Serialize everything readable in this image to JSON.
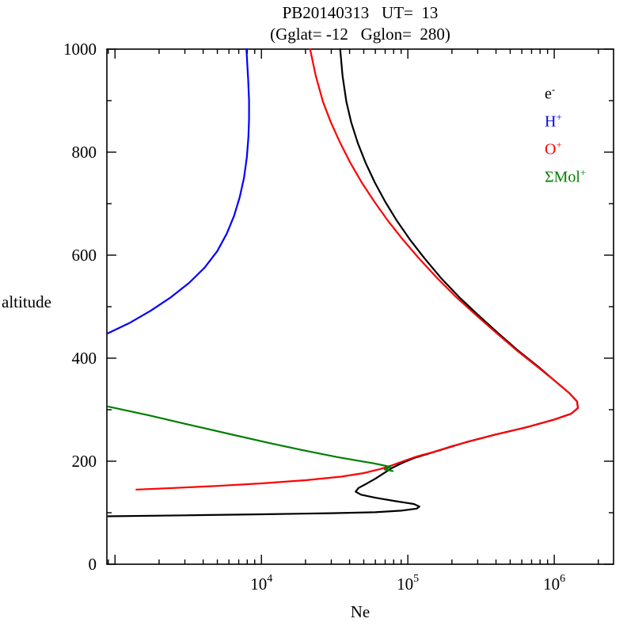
{
  "figure": {
    "title": "PB20140313   UT=  13",
    "subtitle": "(Gglat= -12   Gglon=  280)"
  },
  "chart_data": {
    "type": "line",
    "title": "PB20140313   UT=  13",
    "subtitle": "(Gglat= -12   Gglon=  280)",
    "xlabel": "Ne",
    "ylabel": "altitude",
    "x_scale": "log",
    "grid": false,
    "xlim": [
      880,
      2540000
    ],
    "ylim": [
      0,
      1000
    ],
    "x_major_ticks": [
      10000,
      100000,
      1000000
    ],
    "x_tick_labels": [
      "10^4",
      "10^5",
      "10^6"
    ],
    "y_major_ticks": [
      0,
      200,
      400,
      600,
      800,
      1000
    ],
    "y_minor_step": 100,
    "legend_position": "upper-right-inside",
    "series": [
      {
        "name": "e",
        "label_base": "e",
        "label_sup": "-",
        "color": "#000000",
        "points": [
          [
            900,
            93
          ],
          [
            3000,
            95
          ],
          [
            10000,
            97
          ],
          [
            30000,
            99
          ],
          [
            60000,
            101
          ],
          [
            90000,
            104
          ],
          [
            115000,
            108
          ],
          [
            120000,
            112
          ],
          [
            110000,
            117
          ],
          [
            80000,
            123
          ],
          [
            60000,
            129
          ],
          [
            48000,
            135
          ],
          [
            44000,
            141
          ],
          [
            46000,
            148
          ],
          [
            52000,
            156
          ],
          [
            60000,
            166
          ],
          [
            68000,
            176
          ],
          [
            78000,
            187
          ],
          [
            92000,
            197
          ],
          [
            110000,
            206
          ],
          [
            160000,
            220
          ],
          [
            250000,
            237
          ],
          [
            400000,
            252
          ],
          [
            650000,
            266
          ],
          [
            1000000,
            281
          ],
          [
            1300000,
            292
          ],
          [
            1450000,
            303
          ],
          [
            1430000,
            316
          ],
          [
            1270000,
            332
          ],
          [
            1020000,
            355
          ],
          [
            780000,
            383
          ],
          [
            570000,
            414
          ],
          [
            420000,
            447
          ],
          [
            310000,
            481
          ],
          [
            225000,
            518
          ],
          [
            168000,
            556
          ],
          [
            130000,
            594
          ],
          [
            103000,
            631
          ],
          [
            84000,
            667
          ],
          [
            70000,
            704
          ],
          [
            59500,
            741
          ],
          [
            51500,
            779
          ],
          [
            45500,
            818
          ],
          [
            41000,
            858
          ],
          [
            38000,
            898
          ],
          [
            35800,
            948
          ],
          [
            34500,
            1000
          ]
        ]
      },
      {
        "name": "H",
        "label_base": "H",
        "label_sup": "+",
        "color": "#0000ff",
        "points": [
          [
            890,
            448
          ],
          [
            1250,
            468
          ],
          [
            1750,
            492
          ],
          [
            2400,
            518
          ],
          [
            3200,
            546
          ],
          [
            4100,
            576
          ],
          [
            5000,
            608
          ],
          [
            5800,
            642
          ],
          [
            6500,
            676
          ],
          [
            7100,
            712
          ],
          [
            7600,
            750
          ],
          [
            7950,
            790
          ],
          [
            8150,
            830
          ],
          [
            8230,
            865
          ],
          [
            8230,
            900
          ],
          [
            8120,
            940
          ],
          [
            7900,
            1000
          ]
        ]
      },
      {
        "name": "O",
        "label_base": "O",
        "label_sup": "+",
        "color": "#ff0000",
        "points": [
          [
            1400,
            145
          ],
          [
            2500,
            148
          ],
          [
            5000,
            152
          ],
          [
            10000,
            157
          ],
          [
            20000,
            163
          ],
          [
            35000,
            170
          ],
          [
            50000,
            177
          ],
          [
            65000,
            185
          ],
          [
            78000,
            192
          ],
          [
            93000,
            200
          ],
          [
            115000,
            209
          ],
          [
            150000,
            218
          ],
          [
            200000,
            229
          ],
          [
            250000,
            237
          ],
          [
            400000,
            252
          ],
          [
            650000,
            266
          ],
          [
            1000000,
            281
          ],
          [
            1300000,
            292
          ],
          [
            1450000,
            303
          ],
          [
            1430000,
            316
          ],
          [
            1270000,
            332
          ],
          [
            1020000,
            355
          ],
          [
            770000,
            383
          ],
          [
            560000,
            414
          ],
          [
            410000,
            447
          ],
          [
            300000,
            481
          ],
          [
            215000,
            518
          ],
          [
            158000,
            556
          ],
          [
            119000,
            594
          ],
          [
            92000,
            631
          ],
          [
            73000,
            667
          ],
          [
            59000,
            704
          ],
          [
            48500,
            741
          ],
          [
            40500,
            779
          ],
          [
            34500,
            818
          ],
          [
            29800,
            858
          ],
          [
            26300,
            898
          ],
          [
            23500,
            948
          ],
          [
            21500,
            1000
          ]
        ]
      },
      {
        "name": "Mol",
        "label_base": "ΣMol",
        "label_sup": "+",
        "color": "#007f00",
        "points": [
          [
            900,
            306
          ],
          [
            1700,
            289
          ],
          [
            3200,
            271
          ],
          [
            6000,
            253
          ],
          [
            11500,
            235
          ],
          [
            21000,
            219
          ],
          [
            33000,
            208
          ],
          [
            46000,
            201
          ],
          [
            58000,
            196
          ],
          [
            68000,
            192
          ],
          [
            76000,
            189
          ],
          [
            72000,
            186
          ],
          [
            69500,
            184
          ],
          [
            79000,
            181
          ]
        ]
      }
    ]
  }
}
